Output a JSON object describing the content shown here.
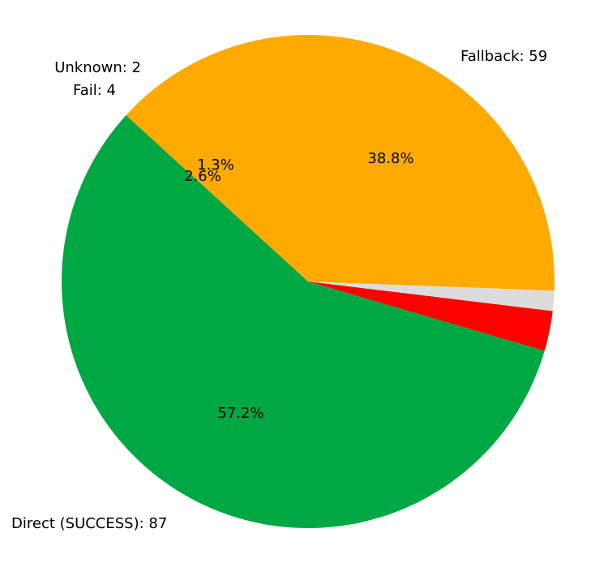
{
  "chart_data": {
    "type": "pie",
    "slices": [
      {
        "label": "Direct (SUCCESS): 87",
        "value": 87,
        "percent_label": "57.2%",
        "color": "#00a843"
      },
      {
        "label": "Fail: 4",
        "value": 4,
        "percent_label": "2.6%",
        "color": "#ff0000"
      },
      {
        "label": "Unknown: 2",
        "value": 2,
        "percent_label": "1.3%",
        "color": "#dcdcdc"
      },
      {
        "label": "Fallback: 59",
        "value": 59,
        "percent_label": "38.8%",
        "color": "#ffaa00"
      }
    ],
    "direction": "counterclockwise",
    "legend": "none"
  }
}
